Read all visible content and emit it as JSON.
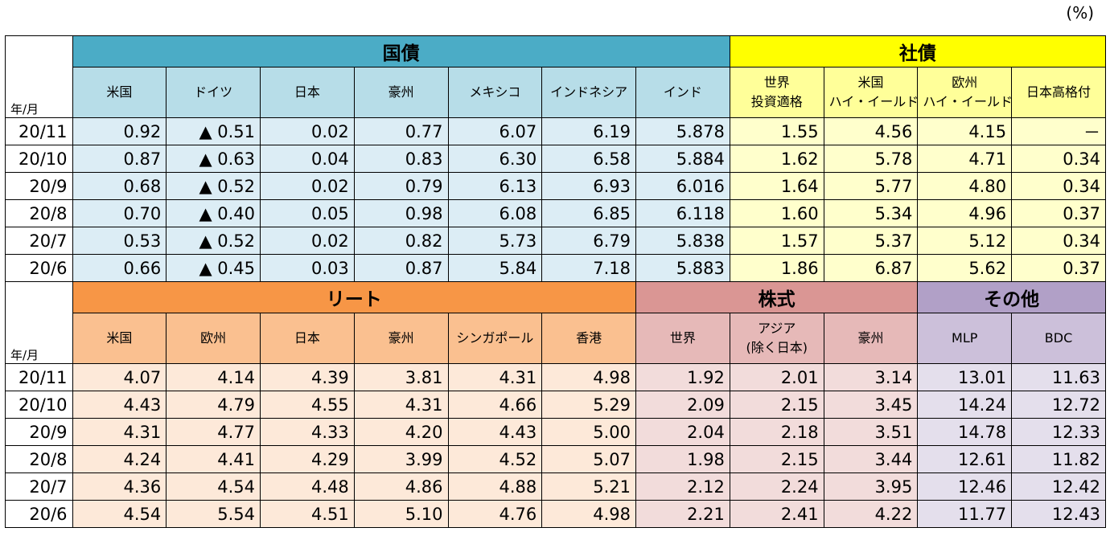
{
  "unit": "(%)",
  "ym_label": "年/月",
  "top": {
    "groups": [
      {
        "name": "国債",
        "span": 7,
        "key": "gov"
      },
      {
        "name": "社債",
        "span": 4,
        "key": "corp"
      }
    ],
    "headers": [
      {
        "label": [
          "米国"
        ],
        "key": "gov"
      },
      {
        "label": [
          "ドイツ"
        ],
        "key": "gov"
      },
      {
        "label": [
          "日本"
        ],
        "key": "gov"
      },
      {
        "label": [
          "豪州"
        ],
        "key": "gov"
      },
      {
        "label": [
          "メキシコ"
        ],
        "key": "gov"
      },
      {
        "label": [
          "インドネシア"
        ],
        "key": "gov"
      },
      {
        "label": [
          "インド"
        ],
        "key": "gov"
      },
      {
        "label": [
          "世界",
          "投資適格"
        ],
        "key": "corp"
      },
      {
        "label": [
          "米国",
          "ハイ・イールド"
        ],
        "key": "corp"
      },
      {
        "label": [
          "欧州",
          "ハイ・イールド"
        ],
        "key": "corp"
      },
      {
        "label": [
          "日本高格付"
        ],
        "key": "corp"
      }
    ],
    "rows": [
      {
        "date": "20/11",
        "values": [
          "0.92",
          "▲ 0.51",
          "0.02",
          "0.77",
          "6.07",
          "6.19",
          "5.878",
          "1.55",
          "4.56",
          "4.15",
          "－"
        ]
      },
      {
        "date": "20/10",
        "values": [
          "0.87",
          "▲ 0.63",
          "0.04",
          "0.83",
          "6.30",
          "6.58",
          "5.884",
          "1.62",
          "5.78",
          "4.71",
          "0.34"
        ]
      },
      {
        "date": "20/9",
        "values": [
          "0.68",
          "▲ 0.52",
          "0.02",
          "0.79",
          "6.13",
          "6.93",
          "6.016",
          "1.64",
          "5.77",
          "4.80",
          "0.34"
        ]
      },
      {
        "date": "20/8",
        "values": [
          "0.70",
          "▲ 0.40",
          "0.05",
          "0.98",
          "6.08",
          "6.85",
          "6.118",
          "1.60",
          "5.34",
          "4.96",
          "0.37"
        ]
      },
      {
        "date": "20/7",
        "values": [
          "0.53",
          "▲ 0.52",
          "0.02",
          "0.82",
          "5.73",
          "6.79",
          "5.838",
          "1.57",
          "5.37",
          "5.12",
          "0.34"
        ]
      },
      {
        "date": "20/6",
        "values": [
          "0.66",
          "▲ 0.45",
          "0.03",
          "0.87",
          "5.84",
          "7.18",
          "5.883",
          "1.86",
          "6.87",
          "5.62",
          "0.37"
        ]
      }
    ]
  },
  "bottom": {
    "groups": [
      {
        "name": "リート",
        "span": 6,
        "key": "reit"
      },
      {
        "name": "株式",
        "span": 3,
        "key": "eq"
      },
      {
        "name": "その他",
        "span": 2,
        "key": "oth"
      }
    ],
    "headers": [
      {
        "label": [
          "米国"
        ],
        "key": "reit"
      },
      {
        "label": [
          "欧州"
        ],
        "key": "reit"
      },
      {
        "label": [
          "日本"
        ],
        "key": "reit"
      },
      {
        "label": [
          "豪州"
        ],
        "key": "reit"
      },
      {
        "label": [
          "シンガポール"
        ],
        "key": "reit"
      },
      {
        "label": [
          "香港"
        ],
        "key": "reit"
      },
      {
        "label": [
          "世界"
        ],
        "key": "eq"
      },
      {
        "label": [
          "アジア",
          "(除く日本)"
        ],
        "key": "eq"
      },
      {
        "label": [
          "豪州"
        ],
        "key": "eq"
      },
      {
        "label": [
          "MLP"
        ],
        "key": "oth"
      },
      {
        "label": [
          "BDC"
        ],
        "key": "oth"
      }
    ],
    "rows": [
      {
        "date": "20/11",
        "values": [
          "4.07",
          "4.14",
          "4.39",
          "3.81",
          "4.31",
          "4.98",
          "1.92",
          "2.01",
          "3.14",
          "13.01",
          "11.63"
        ]
      },
      {
        "date": "20/10",
        "values": [
          "4.43",
          "4.79",
          "4.55",
          "4.31",
          "4.66",
          "5.29",
          "2.09",
          "2.15",
          "3.45",
          "14.24",
          "12.72"
        ]
      },
      {
        "date": "20/9",
        "values": [
          "4.31",
          "4.77",
          "4.33",
          "4.20",
          "4.43",
          "5.00",
          "2.04",
          "2.18",
          "3.51",
          "14.78",
          "12.33"
        ]
      },
      {
        "date": "20/8",
        "values": [
          "4.24",
          "4.41",
          "4.29",
          "3.99",
          "4.52",
          "5.07",
          "1.98",
          "2.15",
          "3.44",
          "12.61",
          "11.82"
        ]
      },
      {
        "date": "20/7",
        "values": [
          "4.36",
          "4.54",
          "4.48",
          "4.86",
          "4.88",
          "5.21",
          "2.12",
          "2.24",
          "3.95",
          "12.46",
          "12.42"
        ]
      },
      {
        "date": "20/6",
        "values": [
          "4.54",
          "5.54",
          "4.51",
          "5.10",
          "4.76",
          "4.98",
          "2.21",
          "2.41",
          "4.22",
          "11.77",
          "12.43"
        ]
      }
    ]
  }
}
